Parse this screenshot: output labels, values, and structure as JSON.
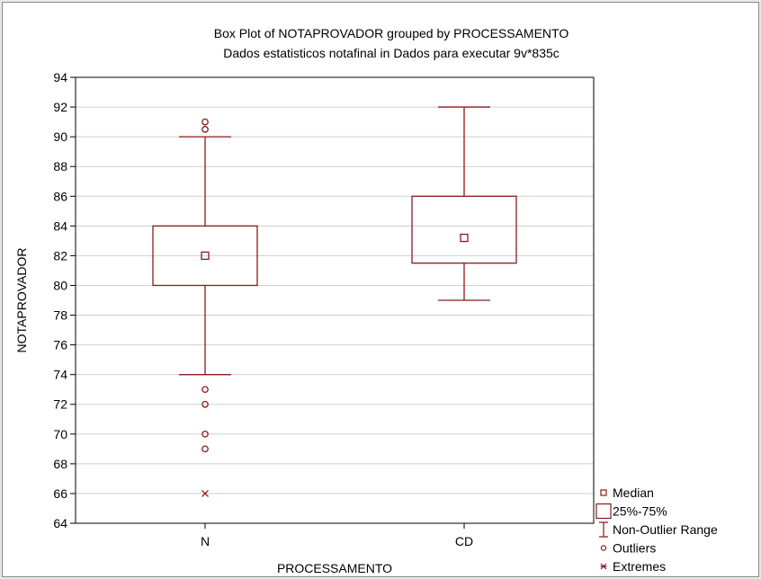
{
  "chart_data": {
    "type": "box",
    "title": "Box Plot of NOTAPROVADOR grouped by  PROCESSAMENTO",
    "subtitle": "Dados estatisticos notafinal in Dados para executar 9v*835c",
    "xlabel": "PROCESSAMENTO",
    "ylabel": "NOTAPROVADOR",
    "ylim": [
      64,
      94
    ],
    "yticks": [
      64,
      66,
      68,
      70,
      72,
      74,
      76,
      78,
      80,
      82,
      84,
      86,
      88,
      90,
      92,
      94
    ],
    "grid": true,
    "categories": [
      "N",
      "CD"
    ],
    "boxes": [
      {
        "category": "N",
        "median": 82,
        "q1": 80,
        "q3": 84,
        "whisker_low": 74,
        "whisker_high": 90,
        "outliers": [
          91,
          90.5,
          73,
          72,
          70,
          69
        ],
        "extremes": [
          66
        ]
      },
      {
        "category": "CD",
        "median": 83.2,
        "q1": 81.5,
        "q3": 86,
        "whisker_low": 79,
        "whisker_high": 92,
        "outliers": [],
        "extremes": []
      }
    ],
    "legend_position": "bottom-right",
    "legend": [
      "Median",
      "25%-75%",
      "Non-Outlier Range",
      "Outliers",
      "Extremes"
    ],
    "color": "#8b1a1a"
  }
}
